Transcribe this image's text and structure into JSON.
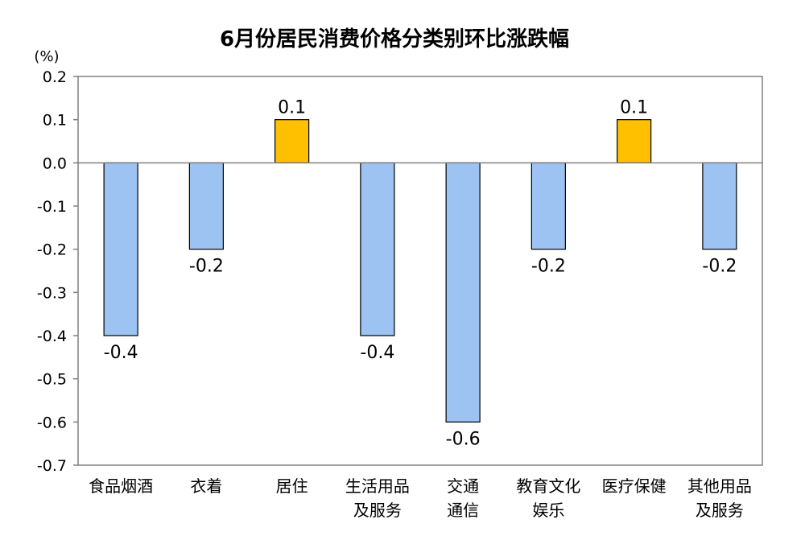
{
  "chart_data": {
    "type": "bar",
    "title": "6月份居民消费价格分类别环比涨跌幅",
    "unit_label": "(%)",
    "ylim": [
      -0.7,
      0.2
    ],
    "yticks": [
      "0.2",
      "0.1",
      "0.0",
      "-0.1",
      "-0.2",
      "-0.3",
      "-0.4",
      "-0.5",
      "-0.6",
      "-0.7"
    ],
    "ytick_values": [
      0.2,
      0.1,
      0.0,
      -0.1,
      -0.2,
      -0.3,
      -0.4,
      -0.5,
      -0.6,
      -0.7
    ],
    "categories": [
      [
        "食品烟酒"
      ],
      [
        "衣着"
      ],
      [
        "居住"
      ],
      [
        "生活用品",
        "及服务"
      ],
      [
        "交通",
        "通信"
      ],
      [
        "教育文化",
        "娱乐"
      ],
      [
        "医疗保健"
      ],
      [
        "其他用品",
        "及服务"
      ]
    ],
    "values": [
      -0.4,
      -0.2,
      0.1,
      -0.4,
      -0.6,
      -0.2,
      0.1,
      -0.2
    ],
    "data_labels": [
      "-0.4",
      "-0.2",
      "0.1",
      "-0.4",
      "-0.6",
      "-0.2",
      "0.1",
      "-0.2"
    ],
    "colors": {
      "negative": "#9DC3F2",
      "positive": "#FFC000",
      "bar_stroke": "#000000",
      "axis": "#808080"
    },
    "grid": false,
    "legend": "none"
  }
}
